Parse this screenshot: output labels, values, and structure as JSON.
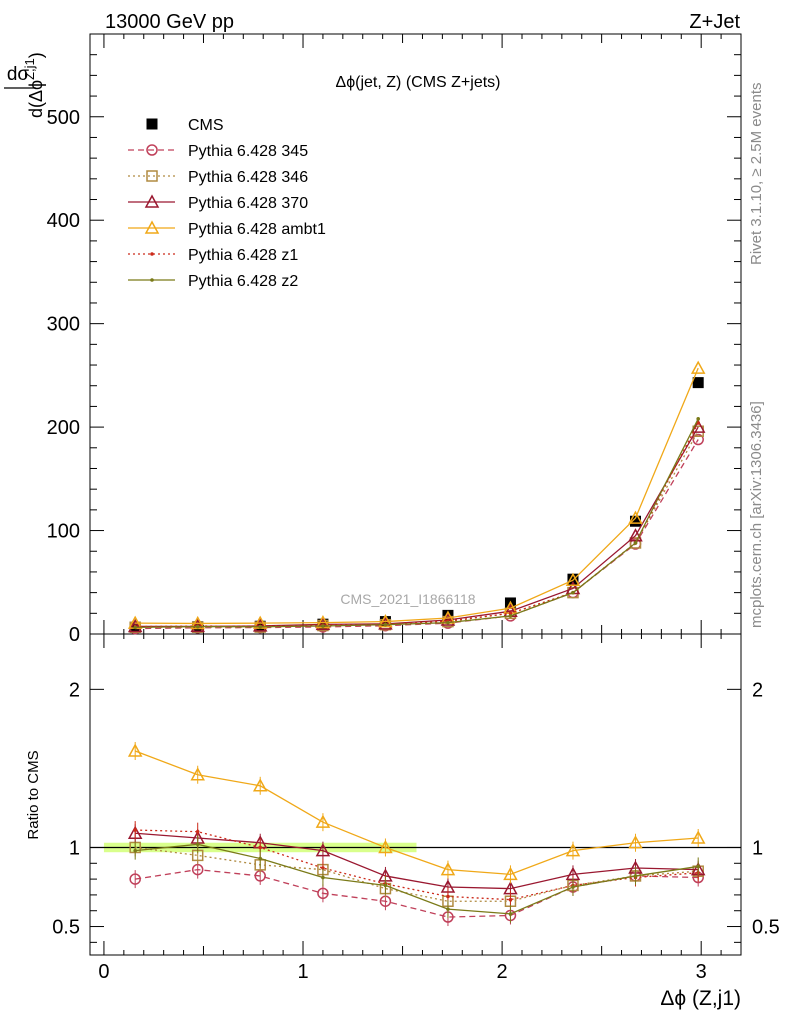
{
  "header": {
    "left": "13000 GeV pp",
    "right": "Z+Jet"
  },
  "side_labels": {
    "rivet": "Rivet 3.1.10, ≥ 2.5M events",
    "mcplots": "mcplots.cern.ch [arXiv:1306.3436]"
  },
  "watermark": "CMS_2021_I1866118",
  "chart_data": [
    {
      "type": "scatter",
      "title": "Δϕ(jet, Z) (CMS Z+jets)",
      "ylabel": {
        "num": "dσ",
        "den": "d(Δϕ",
        "sup": "Z,j1",
        "close": ")"
      },
      "xlim": [
        -0.07,
        3.2
      ],
      "ylim": [
        0,
        580
      ],
      "yticks": [
        0,
        100,
        200,
        300,
        400,
        500
      ],
      "legend_position": "top-left",
      "x": [
        0.157,
        0.471,
        0.785,
        1.1,
        1.414,
        1.728,
        2.042,
        2.356,
        2.67,
        2.985
      ],
      "series": [
        {
          "name": "CMS",
          "color": "#000000",
          "marker": "square-filled",
          "line": "none",
          "values": [
            6.5,
            7.0,
            7.5,
            9.5,
            12.0,
            18.0,
            30.0,
            53.0,
            109.0,
            243.0
          ]
        },
        {
          "name": "Pythia 6.428 345",
          "color": "#c0405a",
          "marker": "circle-open",
          "line": "dashed",
          "values": [
            5.2,
            6.0,
            6.2,
            6.8,
            8.0,
            10.5,
            17.5,
            40.0,
            87.0,
            188.0
          ]
        },
        {
          "name": "Pythia 6.428 346",
          "color": "#b08a40",
          "marker": "square-open",
          "line": "dotted",
          "values": [
            6.5,
            6.6,
            6.7,
            8.2,
            9.0,
            12.0,
            20.0,
            40.0,
            88.0,
            196.0
          ]
        },
        {
          "name": "Pythia 6.428 370",
          "color": "#9a1830",
          "marker": "triangle-open",
          "line": "solid",
          "values": [
            7.3,
            7.4,
            7.8,
            9.3,
            9.8,
            13.5,
            22.0,
            44.0,
            95.0,
            200.0
          ]
        },
        {
          "name": "Pythia 6.428 ambt1",
          "color": "#f0a818",
          "marker": "triangle-open",
          "line": "solid",
          "values": [
            10.5,
            10.2,
            10.5,
            11.0,
            12.0,
            15.5,
            25.0,
            52.0,
            112.0,
            257.0
          ]
        },
        {
          "name": "Pythia 6.428 z1",
          "color": "#cc2a1a",
          "marker": "dot",
          "line": "dotted",
          "values": [
            7.2,
            7.7,
            7.5,
            8.3,
            9.2,
            12.5,
            20.0,
            40.0,
            88.0,
            204.0
          ]
        },
        {
          "name": "Pythia 6.428 z2",
          "color": "#7a7a18",
          "marker": "dot",
          "line": "solid",
          "values": [
            6.4,
            7.1,
            7.0,
            7.7,
            9.0,
            11.0,
            17.5,
            40.0,
            88.0,
            208.0
          ]
        }
      ]
    },
    {
      "type": "line",
      "xlabel": "Δϕ (Z,j1)",
      "ylabel": "Ratio to CMS",
      "xlim": [
        -0.07,
        3.2
      ],
      "ylim": [
        0.32,
        2.35
      ],
      "yticks": [
        0.5,
        1,
        2
      ],
      "xticks": [
        0,
        1,
        2,
        3
      ],
      "x": [
        0.157,
        0.471,
        0.785,
        1.1,
        1.414,
        1.728,
        2.042,
        2.356,
        2.67,
        2.985
      ],
      "band": {
        "x_from": 0.0,
        "x_to": 1.57,
        "lo": 0.97,
        "hi": 1.03,
        "color": "#ccff66"
      },
      "series": [
        {
          "name": "Pythia 6.428 345",
          "color": "#c0405a",
          "marker": "circle-open",
          "line": "dashed",
          "values": [
            0.8,
            0.86,
            0.82,
            0.71,
            0.66,
            0.56,
            0.57,
            0.75,
            0.82,
            0.81
          ]
        },
        {
          "name": "Pythia 6.428 346",
          "color": "#b08a40",
          "marker": "square-open",
          "line": "dotted",
          "values": [
            1.0,
            0.95,
            0.89,
            0.86,
            0.74,
            0.66,
            0.66,
            0.76,
            0.82,
            0.85
          ]
        },
        {
          "name": "Pythia 6.428 370",
          "color": "#9a1830",
          "marker": "triangle-open",
          "line": "solid",
          "values": [
            1.09,
            1.06,
            1.03,
            0.98,
            0.82,
            0.75,
            0.74,
            0.83,
            0.87,
            0.86
          ]
        },
        {
          "name": "Pythia 6.428 ambt1",
          "color": "#f0a818",
          "marker": "triangle-open",
          "line": "solid",
          "values": [
            1.61,
            1.46,
            1.39,
            1.16,
            1.0,
            0.86,
            0.83,
            0.98,
            1.03,
            1.06
          ]
        },
        {
          "name": "Pythia 6.428 z1",
          "color": "#cc2a1a",
          "marker": "dot",
          "line": "dotted",
          "values": [
            1.11,
            1.1,
            1.0,
            0.87,
            0.77,
            0.69,
            0.67,
            0.76,
            0.81,
            0.84
          ]
        },
        {
          "name": "Pythia 6.428 z2",
          "color": "#7a7a18",
          "marker": "dot",
          "line": "solid",
          "values": [
            0.98,
            1.02,
            0.93,
            0.81,
            0.76,
            0.61,
            0.58,
            0.75,
            0.82,
            0.88
          ]
        }
      ]
    }
  ]
}
